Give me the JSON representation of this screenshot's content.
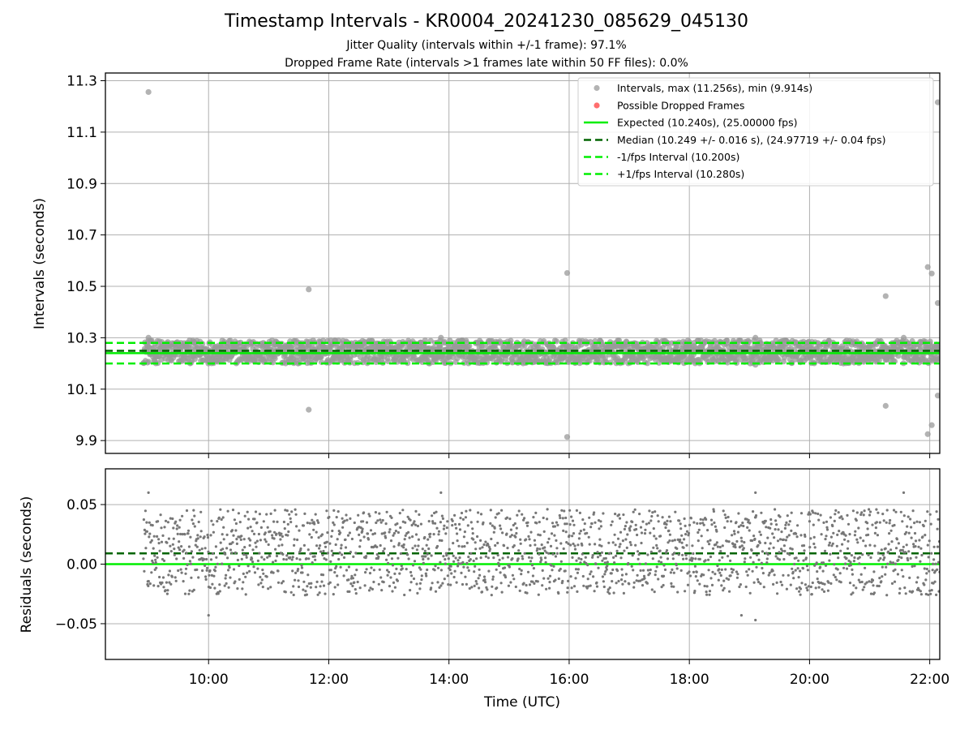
{
  "chart_data": [
    {
      "type": "scatter",
      "title": "Timestamp Intervals - KR0004_20241230_085629_045130",
      "subtitle_lines": [
        "Jitter Quality (intervals within +/-1 frame): 97.1%",
        "Dropped Frame Rate (intervals >1 frames late within 50 FF files): 0.0%"
      ],
      "xlabel": "",
      "ylabel": "Intervals (seconds)",
      "xlim": [
        "08:17",
        "22:10"
      ],
      "ylim": [
        9.85,
        11.33
      ],
      "yticks": [
        "9.9",
        "10.1",
        "10.3",
        "10.5",
        "10.7",
        "10.9",
        "11.1",
        "11.3"
      ],
      "grid": true,
      "legend_position": "upper right",
      "legend": [
        "Intervals, max (11.256s), min (9.914s)",
        "Possible Dropped Frames",
        "Expected (10.240s), (25.00000 fps)",
        "Median (10.249 +/- 0.016 s), (24.97719 +/- 0.04 fps)",
        "-1/fps Interval (10.200s)",
        "+1/fps Interval (10.280s)"
      ],
      "reference_lines": {
        "expected": 10.24,
        "median": 10.249,
        "minus_one_fps": 10.2,
        "plus_one_fps": 10.28
      },
      "data_range": {
        "x_start": "08:55",
        "x_end": "22:10",
        "typical_min": 10.2,
        "typical_max": 10.29
      },
      "outliers": [
        {
          "x": "09:00",
          "y": 11.256
        },
        {
          "x": "09:00",
          "y": 10.3
        },
        {
          "x": "11:40",
          "y": 10.488
        },
        {
          "x": "11:40",
          "y": 10.02
        },
        {
          "x": "13:52",
          "y": 10.3
        },
        {
          "x": "15:58",
          "y": 10.552
        },
        {
          "x": "15:58",
          "y": 9.914
        },
        {
          "x": "19:06",
          "y": 10.3
        },
        {
          "x": "19:06",
          "y": 10.195
        },
        {
          "x": "21:16",
          "y": 10.462
        },
        {
          "x": "21:16",
          "y": 10.035
        },
        {
          "x": "21:34",
          "y": 10.3
        },
        {
          "x": "21:58",
          "y": 10.575
        },
        {
          "x": "21:58",
          "y": 9.925
        },
        {
          "x": "22:02",
          "y": 10.55
        },
        {
          "x": "22:02",
          "y": 9.96
        },
        {
          "x": "22:08",
          "y": 11.216
        },
        {
          "x": "22:08",
          "y": 10.435
        },
        {
          "x": "22:08",
          "y": 10.075
        }
      ],
      "colors": {
        "intervals": "#999999",
        "dropped": "#ff5555",
        "expected": "#00ee00",
        "median": "#006400",
        "fps_bounds": "#00ee00"
      }
    },
    {
      "type": "scatter",
      "title": "",
      "xlabel": "Time (UTC)",
      "ylabel": "Residuals (seconds)",
      "xlim": [
        "08:17",
        "22:10"
      ],
      "ylim": [
        -0.08,
        0.08
      ],
      "xticks": [
        "10:00",
        "12:00",
        "14:00",
        "16:00",
        "18:00",
        "20:00",
        "22:00"
      ],
      "yticks": [
        "−0.05",
        "0.00",
        "0.05"
      ],
      "grid": true,
      "reference_lines": {
        "zero": 0.0,
        "median_offset": 0.009
      },
      "data_range": {
        "x_start": "08:55",
        "x_end": "22:10",
        "typical_min": -0.04,
        "typical_max": 0.05
      },
      "outliers": [
        {
          "x": "09:00",
          "y": 0.06
        },
        {
          "x": "10:00",
          "y": -0.043
        },
        {
          "x": "13:52",
          "y": 0.06
        },
        {
          "x": "18:52",
          "y": -0.043
        },
        {
          "x": "19:06",
          "y": 0.06
        },
        {
          "x": "19:06",
          "y": -0.047
        },
        {
          "x": "21:34",
          "y": 0.06
        }
      ],
      "colors": {
        "points": "#777777",
        "zero": "#00ee00",
        "median": "#006400"
      }
    }
  ]
}
